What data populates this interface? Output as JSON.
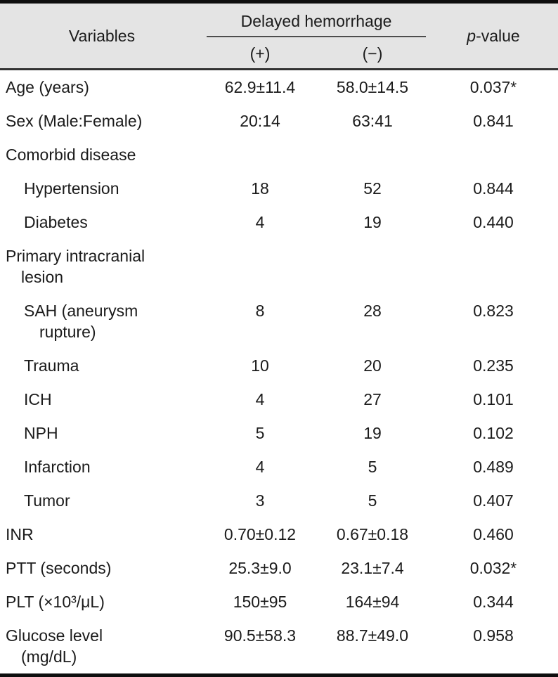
{
  "colors": {
    "header_bg": "#e4e4e4",
    "heavy_border": "#0e0e0e",
    "header_rule": "#333333",
    "spanner_rule": "#4d4d4d",
    "text": "#1b1b1b"
  },
  "header": {
    "variables": "Variables",
    "spanner": "Delayed hemorrhage",
    "col_plus": "(+)",
    "col_minus": "(−)",
    "pvalue_p": "p",
    "pvalue_rest": "-value"
  },
  "table": {
    "rows": [
      {
        "label": "Age (years)",
        "plus": "62.9±11.4",
        "minus": "58.0±14.5",
        "p": "0.037*"
      },
      {
        "label": "Sex (Male:Female)",
        "plus": "20:14",
        "minus": "63:41",
        "p": "0.841"
      },
      {
        "label": "Comorbid disease",
        "plus": "",
        "minus": "",
        "p": ""
      },
      {
        "label": "Hypertension",
        "plus": "18",
        "minus": "52",
        "p": "0.844"
      },
      {
        "label": "Diabetes",
        "plus": "4",
        "minus": "19",
        "p": "0.440"
      },
      {
        "label": "Primary intracranial",
        "label2": "lesion",
        "plus": "",
        "minus": "",
        "p": ""
      },
      {
        "label": "SAH (aneurysm",
        "label2": "rupture)",
        "plus": "8",
        "minus": "28",
        "p": "0.823"
      },
      {
        "label": "Trauma",
        "plus": "10",
        "minus": "20",
        "p": "0.235"
      },
      {
        "label": "ICH",
        "plus": "4",
        "minus": "27",
        "p": "0.101"
      },
      {
        "label": "NPH",
        "plus": "5",
        "minus": "19",
        "p": "0.102"
      },
      {
        "label": "Infarction",
        "plus": "4",
        "minus": "5",
        "p": "0.489"
      },
      {
        "label": "Tumor",
        "plus": "3",
        "minus": "5",
        "p": "0.407"
      },
      {
        "label": "INR",
        "plus": "0.70±0.12",
        "minus": "0.67±0.18",
        "p": "0.460"
      },
      {
        "label": "PTT (seconds)",
        "plus": "25.3±9.0",
        "minus": "23.1±7.4",
        "p": "0.032*"
      },
      {
        "label": "PLT (×10³/μL)",
        "plus": "150±95",
        "minus": "164±94",
        "p": "0.344"
      },
      {
        "label": "Glucose level",
        "label2": "(mg/dL)",
        "plus": "90.5±58.3",
        "minus": "88.7±49.0",
        "p": "0.958"
      }
    ]
  }
}
